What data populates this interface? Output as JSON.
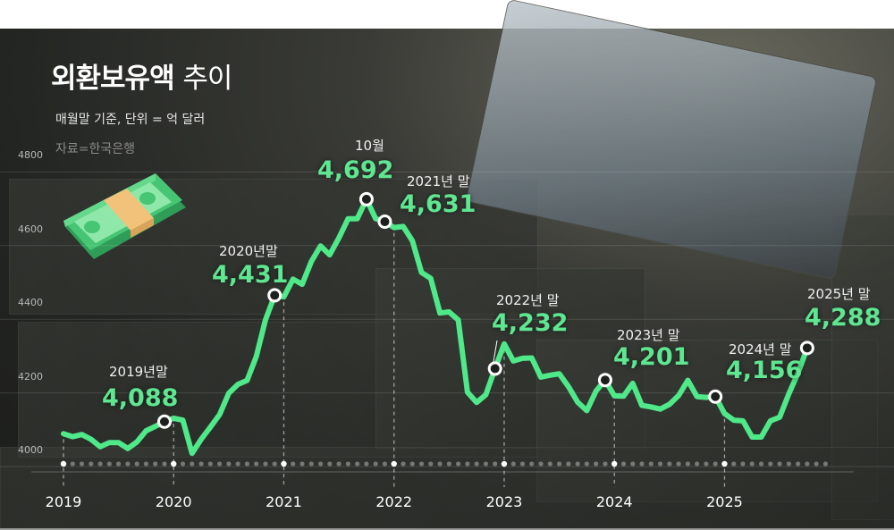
{
  "title": {
    "bold": "외환보유액",
    "light": "추이"
  },
  "subtitle": "매월말 기준, 단위 = 억 달러",
  "source": "자료=한국은행",
  "colors": {
    "line": "#4fe98a",
    "value_text": "#5ee691",
    "background": "#262824"
  },
  "icons": [
    "money-stack-icon"
  ],
  "chart_data": {
    "type": "line",
    "title": "외환보유액 추이",
    "unit": "억 달러",
    "ylim": [
      4000,
      4800
    ],
    "yticks": [
      4800,
      4600,
      4400,
      4200,
      4000
    ],
    "xticks": [
      "2019",
      "2020",
      "2021",
      "2022",
      "2023",
      "2024",
      "2025"
    ],
    "grid": true,
    "x_start": "2019-01",
    "x_end": "2025-10",
    "values": [
      4055,
      4047,
      4053,
      4040,
      4020,
      4031,
      4031,
      4015,
      4033,
      4063,
      4075,
      4088,
      4097,
      4092,
      4002,
      4040,
      4073,
      4107,
      4165,
      4189,
      4200,
      4265,
      4364,
      4431,
      4427,
      4475,
      4461,
      4523,
      4565,
      4541,
      4587,
      4639,
      4639,
      4692,
      4639,
      4631,
      4615,
      4618,
      4579,
      4493,
      4477,
      4383,
      4386,
      4364,
      4168,
      4140,
      4161,
      4232,
      4299,
      4253,
      4260,
      4261,
      4209,
      4214,
      4218,
      4183,
      4141,
      4118,
      4171,
      4201,
      4158,
      4157,
      4192,
      4132,
      4128,
      4122,
      4135,
      4159,
      4200,
      4156,
      4154,
      4156,
      4110,
      4092,
      4090,
      4046,
      4046,
      4090,
      4100,
      4163,
      4220,
      4288
    ],
    "annotations": [
      {
        "month": "2019-12",
        "label": "2019년말",
        "value": "4,088"
      },
      {
        "month": "2020-12",
        "label": "2020년말",
        "value": "4,431"
      },
      {
        "month": "2021-10",
        "label": "10월",
        "value": "4,692"
      },
      {
        "month": "2021-12",
        "label": "2021년 말",
        "value": "4,631"
      },
      {
        "month": "2022-12",
        "label": "2022년 말",
        "value": "4,232"
      },
      {
        "month": "2023-12",
        "label": "2023년 말",
        "value": "4,201"
      },
      {
        "month": "2024-12",
        "label": "2024년 말",
        "value": "4,156"
      },
      {
        "month": "2025-10",
        "label": "2025년 말",
        "value": "4,288"
      }
    ]
  }
}
